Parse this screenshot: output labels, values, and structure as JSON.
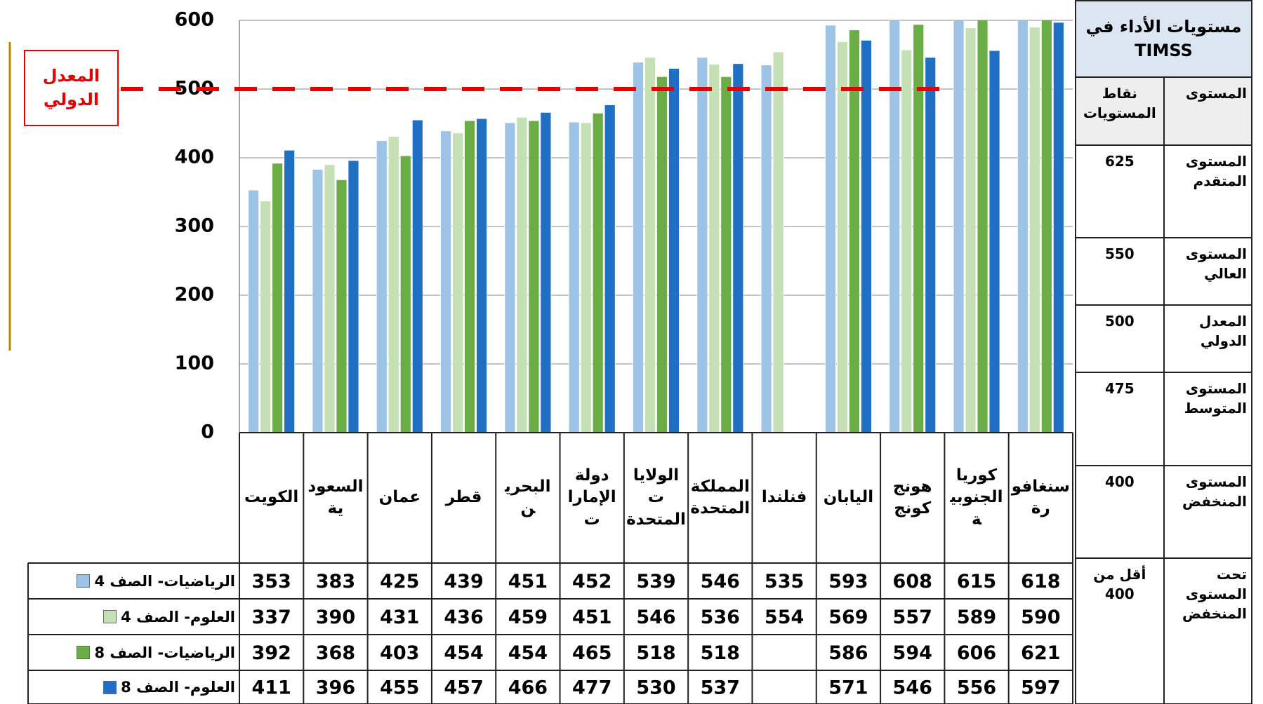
{
  "chart_data": {
    "type": "bar",
    "categories": [
      "الكويت",
      "السعودية",
      "عمان",
      "قطر",
      "البحرين",
      "دولة الإمارات",
      "الولايات المتحدة",
      "المملكة المتحدة",
      "فنلندا",
      "اليابان",
      "هونج كونج",
      "كوريا الجنوبية",
      "سنغافورة"
    ],
    "series": [
      {
        "name": "الرياضيات- الصف 4",
        "color": "#9dc3e6",
        "values": [
          353,
          383,
          425,
          439,
          451,
          452,
          539,
          546,
          535,
          593,
          608,
          615,
          618
        ]
      },
      {
        "name": "العلوم- الصف 4",
        "color": "#c5e0b4",
        "values": [
          337,
          390,
          431,
          436,
          459,
          451,
          546,
          536,
          554,
          569,
          557,
          589,
          590
        ]
      },
      {
        "name": "الرياضيات- الصف 8",
        "color": "#6aad45",
        "values": [
          392,
          368,
          403,
          454,
          454,
          465,
          518,
          518,
          null,
          586,
          594,
          606,
          621
        ]
      },
      {
        "name": "العلوم- الصف 8",
        "color": "#1f6fc5",
        "values": [
          411,
          396,
          455,
          457,
          466,
          477,
          530,
          537,
          null,
          571,
          546,
          556,
          597
        ]
      }
    ],
    "ylim": [
      0,
      600
    ],
    "yticks": [
      0,
      100,
      200,
      300,
      400,
      500,
      600
    ],
    "grid": true,
    "reference_line": {
      "value": 500,
      "label": "المعدل الدولي",
      "color": "#e60000"
    }
  },
  "levels_table": {
    "title": "مستويات الأداء في TIMSS",
    "columns": [
      "المستوى",
      "نقاط المستويات"
    ],
    "rows": [
      [
        "المستوى المتقدم",
        "625"
      ],
      [
        "المستوى العالي",
        "550"
      ],
      [
        "المعدل الدولي",
        "500"
      ],
      [
        "المستوى المتوسط",
        "475"
      ],
      [
        "المستوى المنخفض",
        "400"
      ],
      [
        "تحت المستوى المنخفض",
        "أقل من 400"
      ]
    ]
  }
}
